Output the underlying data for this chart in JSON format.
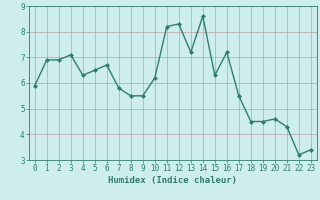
{
  "x": [
    0,
    1,
    2,
    3,
    4,
    5,
    6,
    7,
    8,
    9,
    10,
    11,
    12,
    13,
    14,
    15,
    16,
    17,
    18,
    19,
    20,
    21,
    22,
    23
  ],
  "y": [
    5.9,
    6.9,
    6.9,
    7.1,
    6.3,
    6.5,
    6.7,
    5.8,
    5.5,
    5.5,
    6.2,
    8.2,
    8.3,
    7.2,
    8.6,
    6.3,
    7.2,
    5.5,
    4.5,
    4.5,
    4.6,
    4.3,
    3.2,
    3.4
  ],
  "line_color": "#2e7d6e",
  "marker": "D",
  "marker_size": 2,
  "line_width": 1.0,
  "bg_color": "#ceeeed",
  "grid_color": "#c0a0a0",
  "xlabel": "Humidex (Indice chaleur)",
  "ylim": [
    3,
    9
  ],
  "xlim": [
    -0.5,
    23.5
  ],
  "yticks": [
    3,
    4,
    5,
    6,
    7,
    8,
    9
  ],
  "xticks": [
    0,
    1,
    2,
    3,
    4,
    5,
    6,
    7,
    8,
    9,
    10,
    11,
    12,
    13,
    14,
    15,
    16,
    17,
    18,
    19,
    20,
    21,
    22,
    23
  ],
  "tick_color": "#2e7d6e",
  "label_color": "#2e7d6e",
  "xlabel_fontsize": 6.5,
  "tick_fontsize": 5.5,
  "spine_color": "#2e7d6e"
}
